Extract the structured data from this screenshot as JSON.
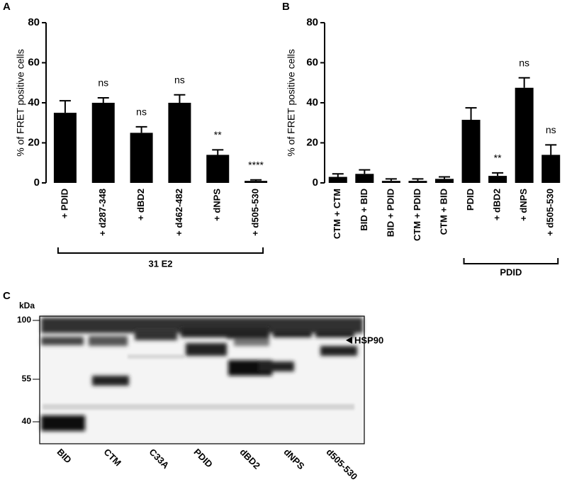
{
  "chart_data": [
    {
      "type": "bar",
      "label": "A",
      "y_label": "% of FRET positive cells",
      "bracket_label": "31 E2",
      "color": "#000000",
      "categories": [
        "+ PDID",
        "+ d287-348",
        "+ dBD2",
        "+ d462-482",
        "+ dNPS",
        "+ d505-530"
      ],
      "values": [
        35,
        40,
        25,
        40,
        14,
        1
      ],
      "errors": [
        6,
        2.5,
        3,
        4,
        2.5,
        0.5
      ],
      "annotations": [
        null,
        "ns",
        "ns",
        "ns",
        "**",
        "****"
      ],
      "ylim": [
        0,
        80
      ],
      "yticks": [
        0,
        20,
        40,
        60,
        80
      ]
    },
    {
      "type": "bar",
      "label": "B",
      "y_label": "% of FRET positive cells",
      "bracket_label": "PDID",
      "color": "#000000",
      "categories": [
        "CTM + CTM",
        "BID + BID",
        "BID + PDID",
        "CTM + PDID",
        "CTM + BID",
        "PDID",
        "+ dBD2",
        "+ dNPS",
        "+ d505-530"
      ],
      "values": [
        3,
        4.5,
        1,
        1,
        2,
        31.5,
        3.5,
        47.5,
        14
      ],
      "errors": [
        1.5,
        2,
        1,
        1,
        1,
        6,
        1.5,
        5,
        5
      ],
      "annotations": [
        null,
        null,
        null,
        null,
        null,
        null,
        "**",
        "ns",
        "ns"
      ],
      "ylim": [
        0,
        80
      ],
      "yticks": [
        0,
        20,
        40,
        60,
        80
      ]
    }
  ],
  "blot": {
    "label": "C",
    "unit": "kDa",
    "markers": [
      100,
      55,
      40
    ],
    "band_label": "HSP90",
    "lanes": [
      "BID",
      "CTM",
      "C33A",
      "PDID",
      "dBD2",
      "dNPS",
      "d505-530"
    ]
  }
}
